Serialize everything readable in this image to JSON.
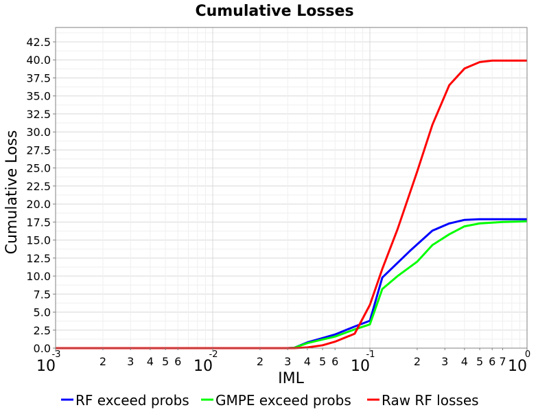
{
  "chart_data": {
    "type": "line",
    "title": "Cumulative Losses",
    "xlabel": "IML",
    "ylabel": "Cumulative Loss",
    "x_scale": "log",
    "xlim": [
      0.001,
      1.0
    ],
    "ylim": [
      0,
      44.5
    ],
    "grid": true,
    "legend_position": "bottom",
    "y_ticks": [
      "0.0",
      "2.5",
      "5.0",
      "7.5",
      "10.0",
      "12.5",
      "15.0",
      "17.5",
      "20.0",
      "22.5",
      "25.0",
      "27.5",
      "30.0",
      "32.5",
      "35.0",
      "37.5",
      "40.0",
      "42.5"
    ],
    "x_major_ticks": [
      {
        "value": 0.001,
        "base": "10",
        "exp": "-3"
      },
      {
        "value": 0.01,
        "base": "10",
        "exp": "-2"
      },
      {
        "value": 0.1,
        "base": "10",
        "exp": "-1"
      },
      {
        "value": 1.0,
        "base": "10",
        "exp": "0"
      }
    ],
    "x_minor_ticks": [
      {
        "value": 0.002,
        "label": "2"
      },
      {
        "value": 0.003,
        "label": "3"
      },
      {
        "value": 0.004,
        "label": "4"
      },
      {
        "value": 0.005,
        "label": "5"
      },
      {
        "value": 0.006,
        "label": "6"
      },
      {
        "value": 0.02,
        "label": "2"
      },
      {
        "value": 0.03,
        "label": "3"
      },
      {
        "value": 0.04,
        "label": "4"
      },
      {
        "value": 0.05,
        "label": "5"
      },
      {
        "value": 0.06,
        "label": "6"
      },
      {
        "value": 0.2,
        "label": "2"
      },
      {
        "value": 0.3,
        "label": "3"
      },
      {
        "value": 0.4,
        "label": "4"
      },
      {
        "value": 0.5,
        "label": "5"
      },
      {
        "value": 0.6,
        "label": "6"
      },
      {
        "value": 0.7,
        "label": "7"
      }
    ],
    "series": [
      {
        "name": "RF exceed probs",
        "color": "#0000ff",
        "x": [
          0.001,
          0.01,
          0.03,
          0.033,
          0.04,
          0.05,
          0.06,
          0.08,
          0.1,
          0.12,
          0.18,
          0.25,
          0.32,
          0.4,
          0.5,
          0.7,
          1.0
        ],
        "y": [
          0.0,
          0.0,
          0.0,
          0.05,
          0.8,
          1.4,
          1.9,
          3.0,
          3.8,
          9.8,
          13.5,
          16.3,
          17.3,
          17.8,
          17.9,
          17.9,
          17.9
        ]
      },
      {
        "name": "GMPE exceed probs",
        "color": "#00ff00",
        "x": [
          0.001,
          0.01,
          0.03,
          0.033,
          0.04,
          0.05,
          0.06,
          0.08,
          0.1,
          0.12,
          0.15,
          0.2,
          0.25,
          0.32,
          0.4,
          0.5,
          0.7,
          1.0
        ],
        "y": [
          0.0,
          0.0,
          0.0,
          0.05,
          0.7,
          1.2,
          1.6,
          2.6,
          3.3,
          8.2,
          10.0,
          12.0,
          14.3,
          15.8,
          16.9,
          17.3,
          17.5,
          17.6
        ]
      },
      {
        "name": "Raw RF losses",
        "color": "#ff0000",
        "x": [
          0.001,
          0.01,
          0.033,
          0.04,
          0.05,
          0.06,
          0.08,
          0.1,
          0.12,
          0.15,
          0.2,
          0.25,
          0.32,
          0.4,
          0.5,
          0.6,
          0.7,
          1.0
        ],
        "y": [
          0.0,
          0.0,
          0.0,
          0.1,
          0.4,
          0.9,
          2.0,
          6.0,
          11.0,
          16.5,
          24.5,
          31.0,
          36.5,
          38.8,
          39.7,
          39.9,
          39.9,
          39.9
        ]
      }
    ]
  }
}
